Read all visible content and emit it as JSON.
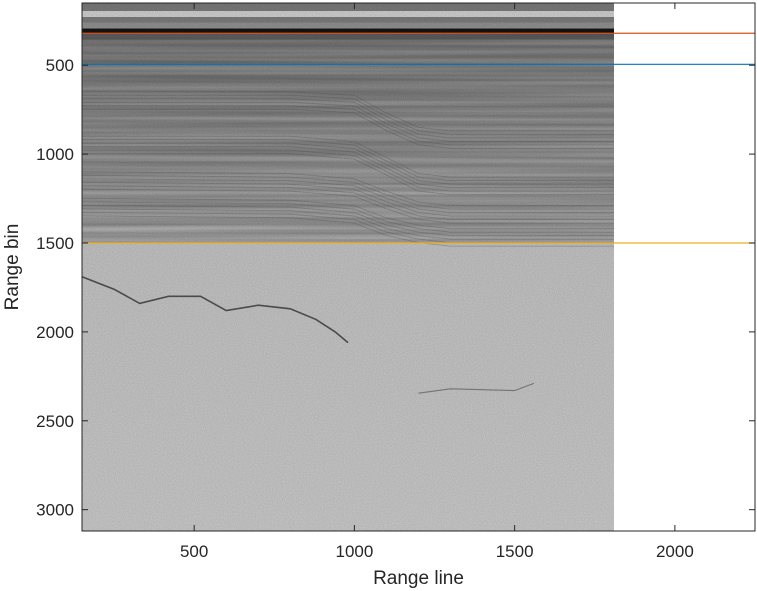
{
  "chart_data": {
    "type": "heatmap",
    "title": "",
    "xlabel": "Range line",
    "ylabel": "Range bin",
    "xlim": [
      150,
      2250
    ],
    "ylim": [
      3120,
      150
    ],
    "y_reversed": true,
    "image_extent": {
      "x": [
        150,
        1810
      ],
      "y": [
        150,
        3120
      ]
    },
    "colormap": "gray",
    "x_ticks": [
      500,
      1000,
      1500,
      2000
    ],
    "y_ticks": [
      500,
      1000,
      1500,
      2000,
      2500,
      3000
    ],
    "grid": false,
    "horizontal_lines": [
      {
        "y": 320,
        "color": "#d95319"
      },
      {
        "y": 495,
        "color": "#0072bd"
      },
      {
        "y": 1500,
        "color": "#edb120"
      }
    ],
    "surface_reflection": {
      "y": 305
    },
    "layer_profiles": [
      {
        "x": [
          150,
          800,
          1000,
          1100,
          1200,
          1300,
          1810
        ],
        "y": [
          700,
          700,
          720,
          820,
          900,
          920,
          920
        ]
      },
      {
        "x": [
          150,
          800,
          1000,
          1100,
          1200,
          1300,
          1810
        ],
        "y": [
          950,
          950,
          980,
          1070,
          1160,
          1180,
          1180
        ]
      },
      {
        "x": [
          150,
          800,
          1000,
          1100,
          1200,
          1300,
          1810
        ],
        "y": [
          1150,
          1160,
          1190,
          1260,
          1320,
          1340,
          1340
        ]
      },
      {
        "x": [
          150,
          800,
          1000,
          1100,
          1200,
          1300,
          1810
        ],
        "y": [
          1300,
          1310,
          1340,
          1410,
          1450,
          1470,
          1470
        ]
      }
    ],
    "bottom_reflector": {
      "x": [
        150,
        250,
        330,
        420,
        520,
        600,
        700,
        800,
        880,
        940,
        980
      ],
      "y": [
        1690,
        1760,
        1840,
        1800,
        1800,
        1880,
        1850,
        1870,
        1930,
        2000,
        2060
      ]
    },
    "faint_reflector": {
      "x": [
        1200,
        1300,
        1400,
        1500,
        1560
      ],
      "y": [
        2345,
        2320,
        2325,
        2330,
        2290
      ]
    }
  }
}
